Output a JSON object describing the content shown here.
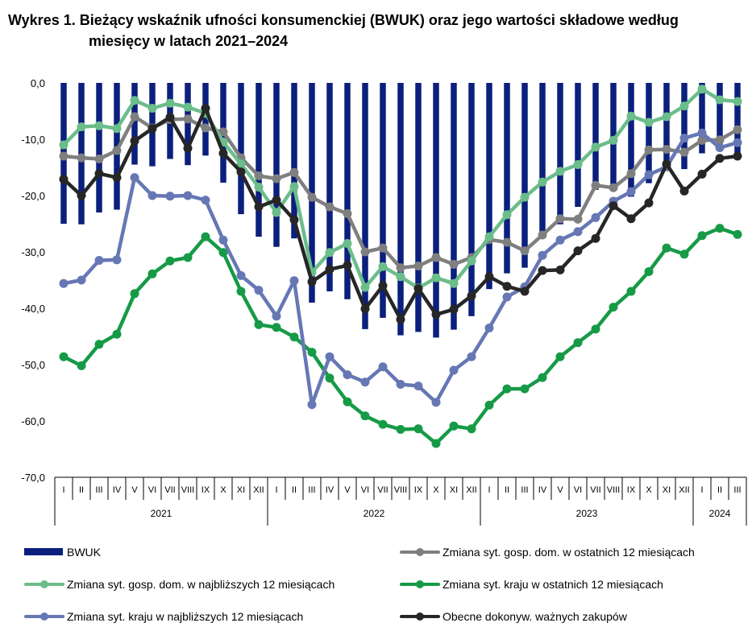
{
  "title": {
    "line1": "Wykres 1. Bieżący wskaźnik ufności konsumenckiej (BWUK) oraz jego wartości składowe według",
    "line2": "miesięcy w latach 2021–2024"
  },
  "chart_data": {
    "type": "bar+line",
    "ylim": [
      -70,
      0
    ],
    "yticks": [
      "0,0",
      "-10,0",
      "-20,0",
      "-30,0",
      "-40,0",
      "-50,0",
      "-60,0",
      "-70,0"
    ],
    "months": [
      "I",
      "II",
      "III",
      "IV",
      "V",
      "VI",
      "VII",
      "VIII",
      "IX",
      "X",
      "XI",
      "XII",
      "I",
      "II",
      "III",
      "IV",
      "V",
      "VI",
      "VII",
      "VIII",
      "IX",
      "X",
      "XI",
      "XII",
      "I",
      "II",
      "III",
      "IV",
      "V",
      "VI",
      "VII",
      "VIII",
      "IX",
      "X",
      "XI",
      "XII",
      "I",
      "II",
      "III"
    ],
    "years": [
      {
        "label": "2021",
        "start": 0,
        "count": 12
      },
      {
        "label": "2022",
        "start": 12,
        "count": 12
      },
      {
        "label": "2023",
        "start": 24,
        "count": 12
      },
      {
        "label": "2024",
        "start": 36,
        "count": 3
      }
    ],
    "grid": false,
    "legend_position": "bottom",
    "series": [
      {
        "name": "BWUK",
        "kind": "bar",
        "color": "#0b1f7c",
        "values": [
          -25.0,
          -25.1,
          -23.0,
          -22.5,
          -14.5,
          -14.8,
          -13.5,
          -14.6,
          -12.9,
          -17.7,
          -23.3,
          -27.3,
          -29.1,
          -27.6,
          -39.0,
          -37.0,
          -38.4,
          -43.7,
          -41.7,
          -44.8,
          -44.2,
          -45.2,
          -43.8,
          -41.4,
          -36.6,
          -33.8,
          -32.8,
          -27.5,
          -25.1,
          -22.0,
          -19.0,
          -18.4,
          -20.2,
          -17.8,
          -15.6,
          -15.3,
          -12.5,
          -11.6,
          -12.8
        ]
      },
      {
        "name": "Zmiana syt. gosp. dom. w ostatnich 12 miesiącach",
        "kind": "line",
        "color": "#7f7f7f",
        "values": [
          -13.0,
          -13.3,
          -13.5,
          -12.0,
          -6.0,
          -8.0,
          -6.5,
          -6.4,
          -8.0,
          -8.7,
          -13.3,
          -16.5,
          -17.0,
          -15.9,
          -20.3,
          -22.0,
          -23.2,
          -30.0,
          -29.3,
          -32.8,
          -32.5,
          -31.0,
          -32.2,
          -31.0,
          -27.8,
          -28.3,
          -29.8,
          -27.0,
          -24.1,
          -24.2,
          -18.2,
          -18.6,
          -16.1,
          -11.9,
          -11.8,
          -12.3,
          -10.2,
          -10.1,
          -8.3
        ]
      },
      {
        "name": "Zmiana syt. gosp. dom. w najbliższych 12 miesiącach",
        "kind": "line",
        "color": "#6bbd8a",
        "values": [
          -11.0,
          -7.8,
          -7.6,
          -8.1,
          -3.1,
          -4.5,
          -3.6,
          -4.3,
          -5.4,
          -10.5,
          -14.4,
          -18.5,
          -23.0,
          -18.4,
          -33.6,
          -30.1,
          -28.5,
          -36.3,
          -32.6,
          -34.4,
          -36.4,
          -34.6,
          -35.6,
          -31.6,
          -27.3,
          -23.4,
          -20.3,
          -17.6,
          -15.7,
          -14.5,
          -11.4,
          -10.2,
          -5.9,
          -7.0,
          -6.0,
          -4.1,
          -1.1,
          -3.0,
          -3.3
        ]
      },
      {
        "name": "Zmiana syt. kraju w ostatnich 12 miesiącach",
        "kind": "line",
        "color": "#169a46",
        "values": [
          -48.6,
          -50.2,
          -46.4,
          -44.6,
          -37.4,
          -33.9,
          -31.6,
          -31.0,
          -27.3,
          -30.1,
          -37.0,
          -42.9,
          -43.4,
          -45.1,
          -47.8,
          -52.4,
          -56.6,
          -59.1,
          -60.6,
          -61.5,
          -61.4,
          -64.0,
          -60.9,
          -61.4,
          -57.2,
          -54.3,
          -54.3,
          -52.3,
          -48.6,
          -46.1,
          -43.7,
          -39.8,
          -37.0,
          -33.5,
          -29.3,
          -30.4,
          -27.1,
          -25.8,
          -26.9
        ]
      },
      {
        "name": "Zmiana syt. kraju w najbliższych 12 miesiącach",
        "kind": "line",
        "color": "#6677b4",
        "values": [
          -35.6,
          -35.0,
          -31.5,
          -31.4,
          -16.8,
          -20.0,
          -20.1,
          -20.0,
          -20.8,
          -27.9,
          -34.2,
          -36.8,
          -41.4,
          -35.1,
          -57.1,
          -48.6,
          -51.8,
          -53.1,
          -50.4,
          -53.5,
          -53.8,
          -56.7,
          -51.0,
          -48.6,
          -43.5,
          -38.0,
          -36.2,
          -30.6,
          -27.9,
          -26.4,
          -23.9,
          -21.0,
          -19.3,
          -16.3,
          -14.9,
          -9.8,
          -8.9,
          -11.5,
          -10.6
        ]
      },
      {
        "name": "Obecne dokonyw. ważnych zakupów",
        "kind": "line",
        "color": "#262626",
        "values": [
          -17.1,
          -20.0,
          -16.1,
          -16.8,
          -10.3,
          -8.1,
          -6.1,
          -11.6,
          -4.5,
          -12.5,
          -15.8,
          -22.0,
          -20.8,
          -24.3,
          -35.3,
          -33.1,
          -32.4,
          -40.1,
          -36.0,
          -42.0,
          -36.5,
          -41.1,
          -40.2,
          -37.8,
          -34.4,
          -36.1,
          -37.0,
          -33.3,
          -33.2,
          -29.8,
          -27.6,
          -21.8,
          -24.1,
          -21.3,
          -14.4,
          -19.2,
          -16.2,
          -13.4,
          -13.0
        ]
      }
    ]
  },
  "legend": [
    {
      "label": "BWUK",
      "kind": "bar",
      "color": "#0b1f7c"
    },
    {
      "label": "Zmiana syt. gosp. dom. w ostatnich 12 miesiącach",
      "kind": "line",
      "color": "#7f7f7f"
    },
    {
      "label": "Zmiana syt. gosp. dom. w najbliższych 12 miesiącach",
      "kind": "line",
      "color": "#6bbd8a"
    },
    {
      "label": "Zmiana syt. kraju w ostatnich 12 miesiącach",
      "kind": "line",
      "color": "#169a46"
    },
    {
      "label": "Zmiana syt. kraju w najbliższych 12 miesiącach",
      "kind": "line",
      "color": "#6677b4"
    },
    {
      "label": "Obecne dokonyw. ważnych zakupów",
      "kind": "line",
      "color": "#262626"
    }
  ]
}
